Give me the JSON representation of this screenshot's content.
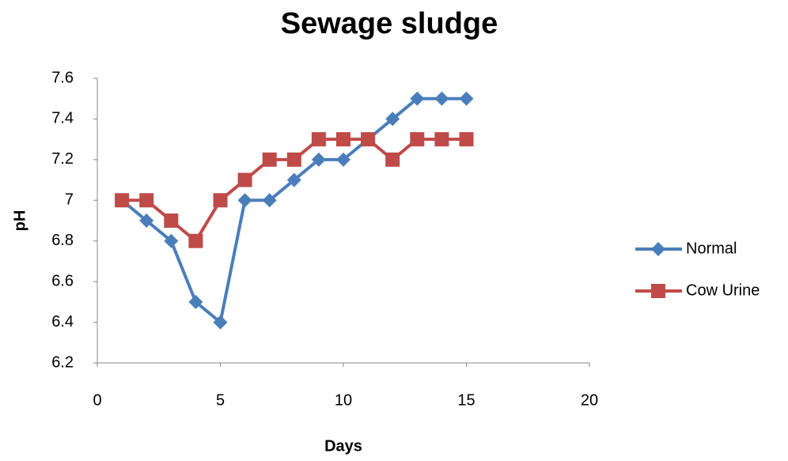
{
  "chart_data": {
    "type": "line",
    "title": "Sewage sludge",
    "x_label": "Days",
    "y_label": "pH",
    "x": [
      1,
      2,
      3,
      4,
      5,
      6,
      7,
      8,
      9,
      10,
      11,
      12,
      13,
      14,
      15
    ],
    "series": [
      {
        "name": "Normal",
        "color": "#4a7ebb",
        "marker": "diamond",
        "values": [
          7.0,
          6.9,
          6.8,
          6.5,
          6.4,
          7.0,
          7.0,
          7.1,
          7.2,
          7.2,
          7.3,
          7.4,
          7.5,
          7.5,
          7.5
        ]
      },
      {
        "name": "Cow Urine",
        "color": "#be4b48",
        "marker": "square",
        "values": [
          7.0,
          7.0,
          6.9,
          6.8,
          7.0,
          7.1,
          7.2,
          7.2,
          7.3,
          7.3,
          7.3,
          7.2,
          7.3,
          7.3,
          7.3
        ]
      }
    ],
    "xlim": [
      0,
      20
    ],
    "xticks": [
      0,
      5,
      10,
      15,
      20
    ],
    "ylim": [
      6.2,
      7.6
    ],
    "yticks": [
      6.2,
      6.4,
      6.6,
      6.8,
      7,
      7.2,
      7.4,
      7.6
    ],
    "grid": false,
    "legend": "right"
  }
}
